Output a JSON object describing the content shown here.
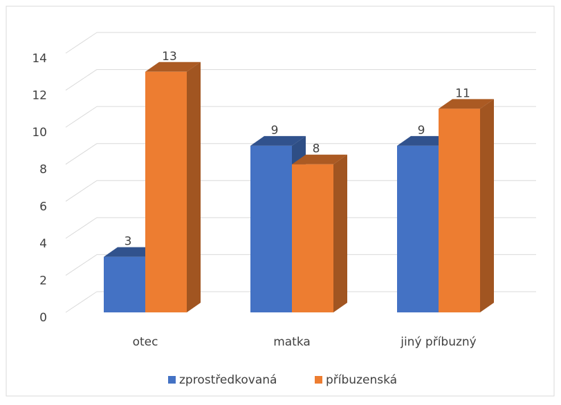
{
  "chart_data": {
    "type": "bar3d",
    "categories": [
      "otec",
      "matka",
      "jiný příbuzný"
    ],
    "series": [
      {
        "name": "zprostředkovaná",
        "color": "#4472c4",
        "values": [
          3,
          9,
          9
        ]
      },
      {
        "name": "příbuzenská",
        "color": "#ed7d31",
        "values": [
          13,
          8,
          11
        ]
      }
    ],
    "ylim": [
      0,
      14
    ],
    "yticks": [
      0,
      2,
      4,
      6,
      8,
      10,
      12,
      14
    ],
    "grid": true,
    "legend": "bottom"
  }
}
